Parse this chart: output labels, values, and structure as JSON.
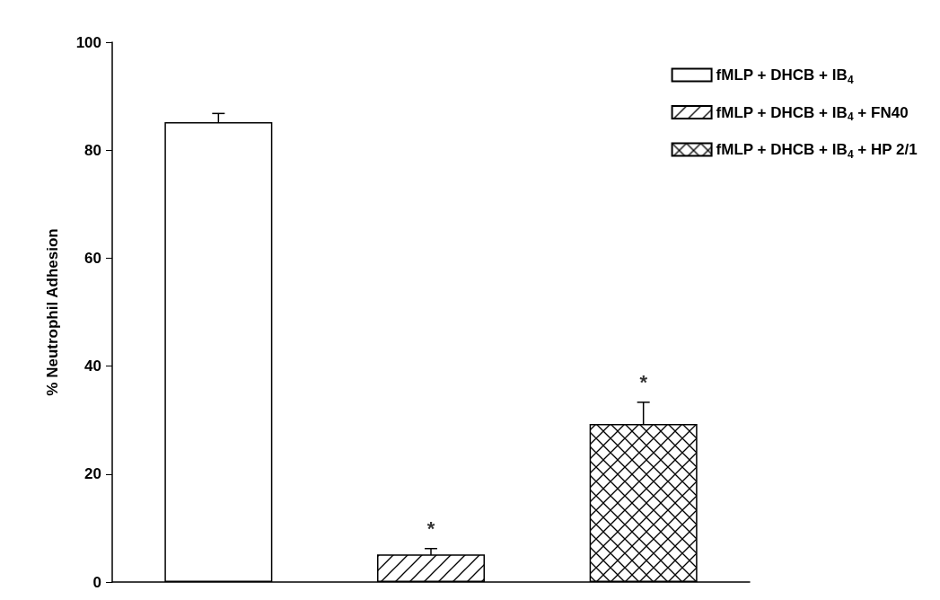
{
  "chart_data": {
    "type": "bar",
    "ylabel": "% Neutrophil Adhesion",
    "categories": [
      null,
      null,
      null
    ],
    "series": [
      {
        "name": "fMLP + DHCB + IB$_{4}$",
        "color": "#000000",
        "values": [
          85.2,
          null,
          null
        ],
        "errors": [
          1.6,
          null,
          null
        ]
      },
      {
        "name": "fMLP + DHCB + IB$_{4}$ + FN40",
        "color": "#000000",
        "values": [
          null,
          5.1,
          null
        ],
        "errors": [
          null,
          1.1,
          null
        ]
      },
      {
        "name": "fMLP + DHCB + IB$_{4}$ + HP 2/1",
        "color": "#000000",
        "values": [
          null,
          null,
          29.3
        ],
        "errors": [
          null,
          null,
          4.0
        ]
      }
    ],
    "ylim": [
      0,
      100
    ],
    "yticks": [
      0,
      20,
      40,
      60,
      80,
      100
    ],
    "grid": false,
    "legend": "top right",
    "annotations": [
      "*",
      "*"
    ]
  }
}
